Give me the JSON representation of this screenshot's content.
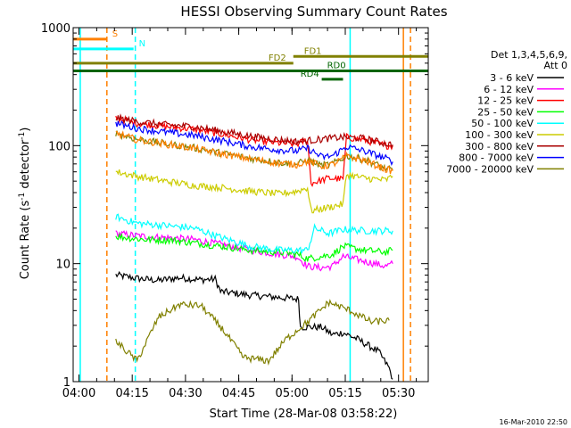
{
  "chart_data": {
    "type": "line",
    "title": "HESSI Observing Summary Count Rates",
    "xlabel": "Start Time (28-Mar-08 03:58:22)",
    "ylabel_main": "Count Rate (s",
    "ylabel_sup1": "-1",
    "ylabel_mid": " detector",
    "ylabel_sup2": "-1",
    "ylabel_end": ")",
    "yscale": "log",
    "ylim": [
      1,
      1000
    ],
    "xlim_minutes": [
      0,
      100
    ],
    "x_ticks": [
      "04:00",
      "04:15",
      "04:30",
      "04:45",
      "05:00",
      "05:15",
      "05:30"
    ],
    "x_tick_minutes": [
      1.63,
      16.63,
      31.63,
      46.63,
      61.63,
      76.63,
      91.63
    ],
    "y_ticks": [
      {
        "value": 1,
        "label": "1"
      },
      {
        "value": 10,
        "label": "10"
      },
      {
        "value": 100,
        "label": "100"
      },
      {
        "value": 1000,
        "label": "1000"
      }
    ],
    "legend_header": [
      "Det 1,3,4,5,6,9,",
      "Att 0"
    ],
    "legend_placement": "right",
    "timestamp": "16-Mar-2010 22:50",
    "series": [
      {
        "name": "3 - 6 keV",
        "color": "#000000",
        "points": [
          [
            12,
            8
          ],
          [
            18,
            7.5
          ],
          [
            24,
            7.2
          ],
          [
            30,
            7.6
          ],
          [
            36,
            7.3
          ],
          [
            40,
            7.4
          ],
          [
            41.5,
            5.8
          ],
          [
            50,
            5.4
          ],
          [
            57,
            5.2
          ],
          [
            63.5,
            5
          ],
          [
            64,
            2.9
          ],
          [
            70,
            2.9
          ],
          [
            73,
            2.5
          ],
          [
            76,
            2.6
          ],
          [
            80,
            2.3
          ],
          [
            86,
            1.8
          ],
          [
            89,
            1.3
          ],
          [
            90,
            1.05
          ]
        ]
      },
      {
        "name": "6 - 12 keV",
        "color": "#ff00ff",
        "points": [
          [
            12,
            18
          ],
          [
            20,
            17
          ],
          [
            28,
            16.5
          ],
          [
            34,
            16
          ],
          [
            42,
            14.5
          ],
          [
            50,
            13
          ],
          [
            58,
            12
          ],
          [
            63,
            11.5
          ],
          [
            66,
            9.5
          ],
          [
            70,
            9.2
          ],
          [
            73,
            9.5
          ],
          [
            76,
            11.5
          ],
          [
            82,
            10.5
          ],
          [
            88,
            9.5
          ],
          [
            90,
            10
          ]
        ]
      },
      {
        "name": "12 - 25 keV",
        "color": "#ff0000",
        "points": [
          [
            12,
            172
          ],
          [
            18,
            155
          ],
          [
            26,
            145
          ],
          [
            34,
            138
          ],
          [
            42,
            125
          ],
          [
            50,
            112
          ],
          [
            58,
            105
          ],
          [
            63,
            103
          ],
          [
            66,
            112
          ],
          [
            67,
            48
          ],
          [
            72,
            53
          ],
          [
            76,
            52
          ],
          [
            77,
            118
          ],
          [
            82,
            112
          ],
          [
            88,
            100
          ],
          [
            90,
            100
          ]
        ]
      },
      {
        "name": "25 - 50 keV",
        "color": "#00ff00",
        "points": [
          [
            12,
            17
          ],
          [
            20,
            16
          ],
          [
            28,
            15.8
          ],
          [
            34,
            15
          ],
          [
            42,
            14
          ],
          [
            50,
            13
          ],
          [
            58,
            12.5
          ],
          [
            63,
            12
          ],
          [
            66,
            11
          ],
          [
            70,
            11.5
          ],
          [
            73,
            12
          ],
          [
            76,
            14
          ],
          [
            82,
            13
          ],
          [
            88,
            12.5
          ],
          [
            90,
            13
          ]
        ]
      },
      {
        "name": "50 - 100 keV",
        "color": "#00ffff",
        "points": [
          [
            12,
            25
          ],
          [
            18,
            22
          ],
          [
            26,
            21
          ],
          [
            34,
            20
          ],
          [
            42,
            16.5
          ],
          [
            50,
            14
          ],
          [
            58,
            13
          ],
          [
            63,
            13
          ],
          [
            66,
            13
          ],
          [
            68,
            20
          ],
          [
            72,
            18
          ],
          [
            76,
            19.5
          ],
          [
            82,
            19
          ],
          [
            88,
            19
          ],
          [
            90,
            19
          ]
        ]
      },
      {
        "name": "100 - 300 keV",
        "color": "#cccc00",
        "points": [
          [
            12,
            60
          ],
          [
            18,
            55
          ],
          [
            26,
            50
          ],
          [
            34,
            46
          ],
          [
            42,
            44
          ],
          [
            50,
            41
          ],
          [
            58,
            39
          ],
          [
            63,
            41
          ],
          [
            66,
            44
          ],
          [
            67,
            28
          ],
          [
            72,
            30
          ],
          [
            76,
            32
          ],
          [
            77,
            57
          ],
          [
            82,
            53
          ],
          [
            88,
            51
          ],
          [
            90,
            55
          ]
        ]
      },
      {
        "name": "300 - 800 keV",
        "color": "#aa0000",
        "points": [
          [
            12,
            172
          ],
          [
            18,
            160
          ],
          [
            26,
            150
          ],
          [
            34,
            145
          ],
          [
            42,
            132
          ],
          [
            50,
            120
          ],
          [
            58,
            112
          ],
          [
            63,
            108
          ],
          [
            66,
            110
          ],
          [
            72,
            115
          ],
          [
            76,
            118
          ],
          [
            82,
            115
          ],
          [
            88,
            104
          ],
          [
            90,
            102
          ]
        ]
      },
      {
        "name": "800 - 7000 keV",
        "color": "#0000ff",
        "points": [
          [
            12,
            155
          ],
          [
            18,
            140
          ],
          [
            26,
            130
          ],
          [
            34,
            122
          ],
          [
            42,
            110
          ],
          [
            50,
            98
          ],
          [
            58,
            92
          ],
          [
            63,
            90
          ],
          [
            66,
            95
          ],
          [
            70,
            80
          ],
          [
            73,
            82
          ],
          [
            77,
            98
          ],
          [
            82,
            90
          ],
          [
            88,
            78
          ],
          [
            90,
            73
          ]
        ]
      },
      {
        "name": "7000 - 20000 keV",
        "color": "#808000",
        "points": [
          [
            12,
            128
          ],
          [
            18,
            113
          ],
          [
            26,
            104
          ],
          [
            34,
            96
          ],
          [
            42,
            86
          ],
          [
            50,
            78
          ],
          [
            58,
            72
          ],
          [
            63,
            70
          ],
          [
            66,
            75
          ],
          [
            70,
            68
          ],
          [
            73,
            70
          ],
          [
            77,
            82
          ],
          [
            82,
            76
          ],
          [
            88,
            64
          ],
          [
            90,
            62
          ]
        ]
      },
      {
        "name": "",
        "color": "#ff8000",
        "points": [
          [
            12,
            128
          ],
          [
            18,
            112
          ],
          [
            26,
            103
          ],
          [
            34,
            95
          ],
          [
            42,
            85
          ],
          [
            50,
            77
          ],
          [
            58,
            71
          ],
          [
            63,
            69
          ],
          [
            66,
            74
          ],
          [
            70,
            67
          ],
          [
            73,
            69
          ],
          [
            77,
            81
          ],
          [
            82,
            75
          ],
          [
            88,
            63
          ],
          [
            90,
            61
          ]
        ]
      },
      {
        "name": "",
        "color": "#808000",
        "points": [
          [
            12,
            2.2
          ],
          [
            18,
            1.5
          ],
          [
            24,
            3.5
          ],
          [
            30,
            4.5
          ],
          [
            36,
            4.4
          ],
          [
            42,
            2.8
          ],
          [
            48,
            1.6
          ],
          [
            55,
            1.5
          ],
          [
            60,
            2.3
          ],
          [
            66,
            3.2
          ],
          [
            72,
            4.7
          ],
          [
            78,
            4
          ],
          [
            84,
            3.2
          ],
          [
            89,
            3.3
          ]
        ]
      }
    ],
    "flags": [
      {
        "label": "S",
        "color": "#ff8000",
        "y": 800,
        "x0": 0,
        "x1": 9.5,
        "label_x": 11
      },
      {
        "label": "N",
        "color": "#00ffff",
        "y": 660,
        "x0": 0,
        "x1": 17,
        "label_x": 18.5
      },
      {
        "label": "FD1",
        "color": "#808000",
        "y": 570,
        "x0": 62,
        "x1": 100,
        "label_x": 65
      },
      {
        "label": "FD2",
        "color": "#808000",
        "y": 500,
        "x0": 0,
        "x1": 62,
        "label_x": 55
      },
      {
        "label": "RD0",
        "color": "#006400",
        "y": 430,
        "x0": 0,
        "x1": 100,
        "label_x": 71.5
      },
      {
        "label": "RD4",
        "color": "#006400",
        "y": 365,
        "x0": 70,
        "x1": 76,
        "label_x": 64
      }
    ],
    "vlines": [
      {
        "x": 9.5,
        "color": "#ff8000",
        "dash": true
      },
      {
        "x": 17.5,
        "color": "#00ffff",
        "dash": true
      },
      {
        "x": 78,
        "color": "#00ffff",
        "dash": false
      },
      {
        "x": 93,
        "color": "#ff8000",
        "dash": false
      },
      {
        "x": 95,
        "color": "#ff8000",
        "dash": true
      },
      {
        "x": 2,
        "color": "#00ffff",
        "dash": false
      }
    ]
  }
}
